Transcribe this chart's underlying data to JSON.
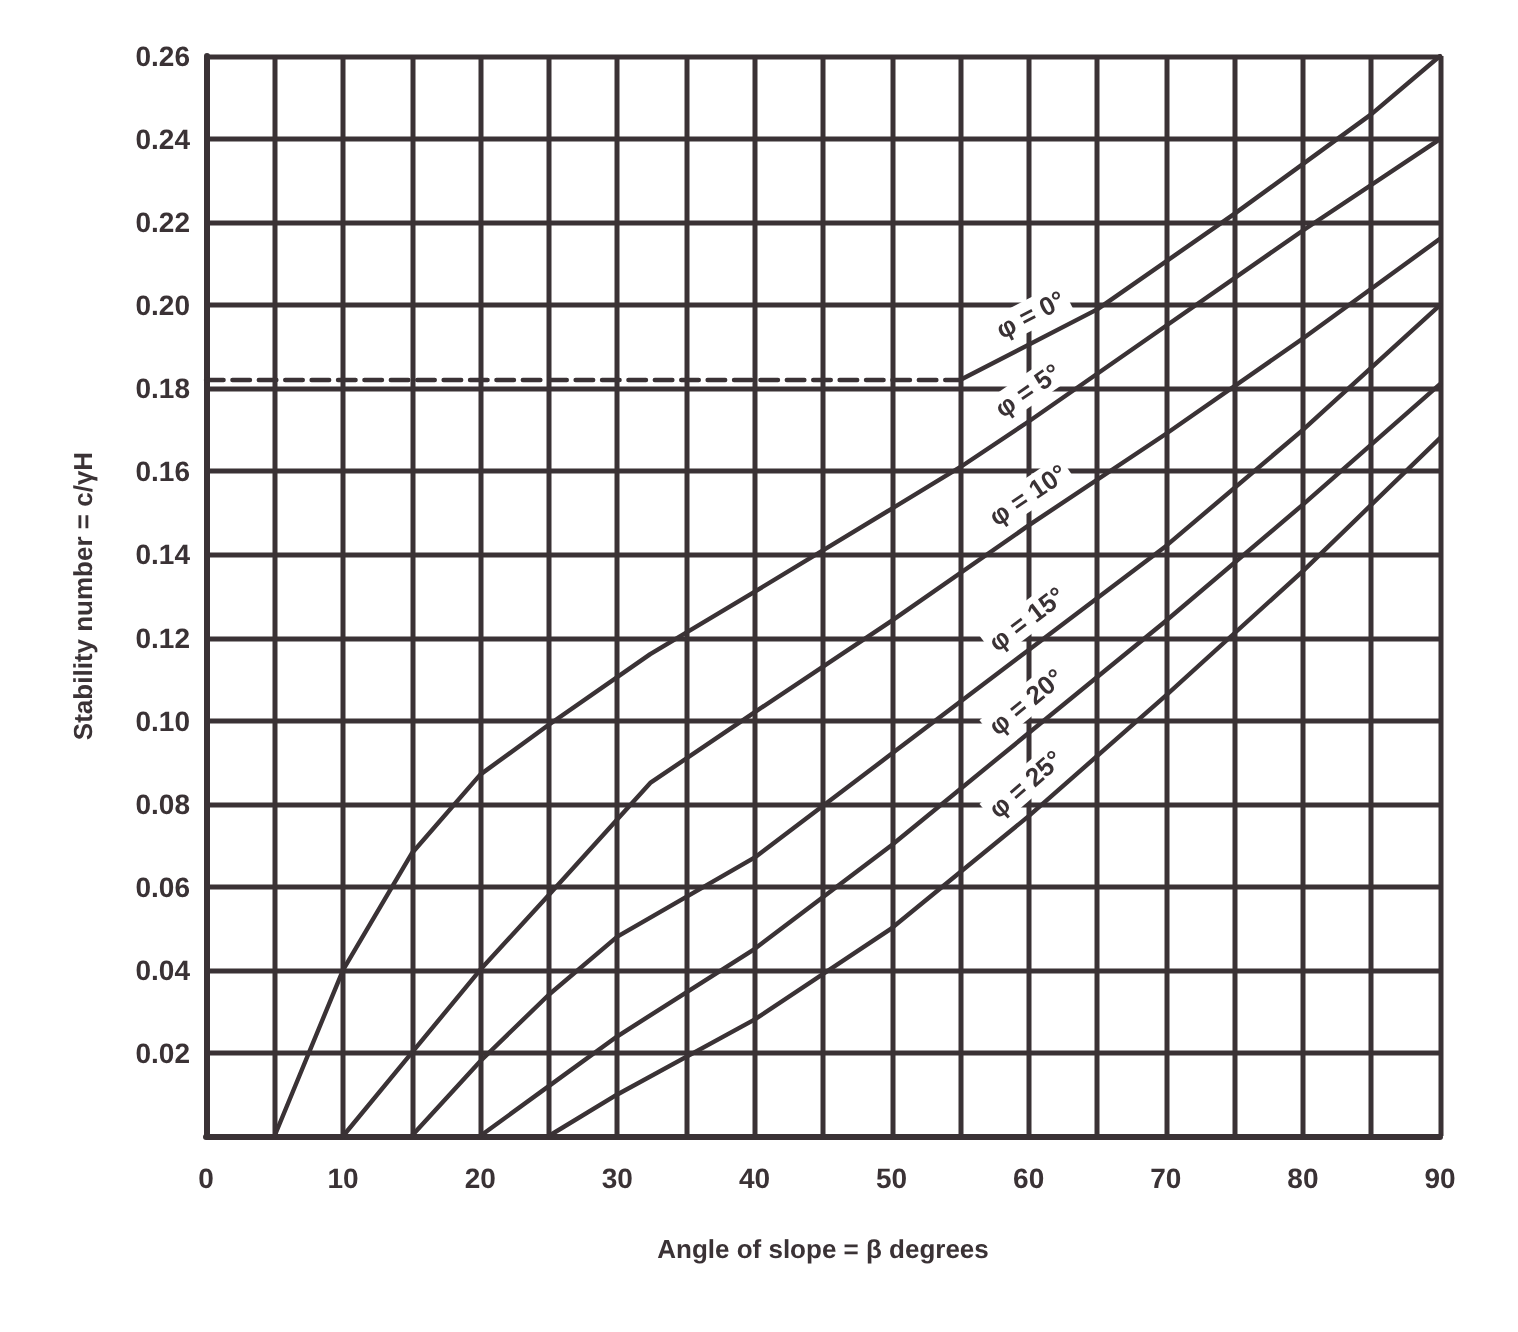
{
  "chart_data": {
    "type": "line",
    "xlabel": "Angle of slope = β degrees",
    "ylabel": "Stability number = c/γH",
    "xlim": [
      0,
      90
    ],
    "ylim": [
      0,
      0.26
    ],
    "xticks": [
      0,
      {
        "value": 5,
        "label": null
      },
      10,
      {
        "value": 15,
        "label": null
      },
      20,
      {
        "value": 25,
        "label": null
      },
      30,
      {
        "value": 35,
        "label": null
      },
      40,
      {
        "value": 45,
        "label": null
      },
      50,
      {
        "value": 55,
        "label": null
      },
      60,
      {
        "value": 65,
        "label": null
      },
      70,
      {
        "value": 75,
        "label": null
      },
      80,
      {
        "value": 85,
        "label": null
      },
      90
    ],
    "yticks": [
      {
        "value": 0,
        "label": null
      },
      0.02,
      0.04,
      0.06,
      0.08,
      {
        "value": 0.1,
        "label": "0.10"
      },
      0.12,
      0.14,
      0.16,
      0.18,
      {
        "value": 0.2,
        "label": "0.20"
      },
      0.22,
      0.24,
      0.26
    ],
    "grid": true,
    "marker": "none",
    "series": [
      {
        "color": "#3a3235",
        "line_style": "dashed",
        "x": [
          0,
          55
        ],
        "values": [
          0.182,
          0.182
        ]
      },
      {
        "name": "φ = 0°",
        "color": "#3a3235",
        "line_style": "solid",
        "x": [
          55,
          65,
          75,
          85,
          90
        ],
        "values": [
          0.182,
          0.199,
          0.222,
          0.246,
          0.26
        ]
      },
      {
        "name": "φ = 5°",
        "color": "#3a3235",
        "line_style": "solid",
        "x": [
          5,
          10,
          15,
          20,
          25,
          32.4,
          40,
          50,
          55,
          60,
          70,
          80,
          90
        ],
        "values": [
          0,
          0.04,
          0.068,
          0.087,
          0.099,
          0.116,
          0.131,
          0.151,
          0.161,
          0.172,
          0.195,
          0.218,
          0.24
        ]
      },
      {
        "name": "φ = 10°",
        "color": "#3a3235",
        "line_style": "solid",
        "x": [
          10,
          15,
          20,
          25,
          32.4,
          40,
          50,
          60,
          70,
          80,
          90
        ],
        "values": [
          0,
          0.02,
          0.04,
          0.058,
          0.085,
          0.102,
          0.124,
          0.147,
          0.169,
          0.192,
          0.216
        ]
      },
      {
        "name": "φ = 15°",
        "color": "#3a3235",
        "line_style": "solid",
        "x": [
          15,
          20,
          25,
          30,
          40,
          50,
          60,
          70,
          80,
          90
        ],
        "values": [
          0,
          0.018,
          0.034,
          0.048,
          0.067,
          0.092,
          0.117,
          0.142,
          0.17,
          0.2
        ]
      },
      {
        "name": "φ = 20°",
        "color": "#3a3235",
        "line_style": "solid",
        "x": [
          20,
          25,
          30,
          40,
          50,
          60,
          70,
          80,
          90
        ],
        "values": [
          0,
          0.012,
          0.024,
          0.045,
          0.07,
          0.097,
          0.124,
          0.152,
          0.181
        ]
      },
      {
        "name": "φ = 25°",
        "color": "#3a3235",
        "line_style": "solid",
        "x": [
          25,
          30,
          40,
          50,
          60,
          70,
          80,
          90
        ],
        "values": [
          0,
          0.01,
          0.028,
          0.05,
          0.077,
          0.106,
          0.136,
          0.168
        ]
      }
    ]
  }
}
